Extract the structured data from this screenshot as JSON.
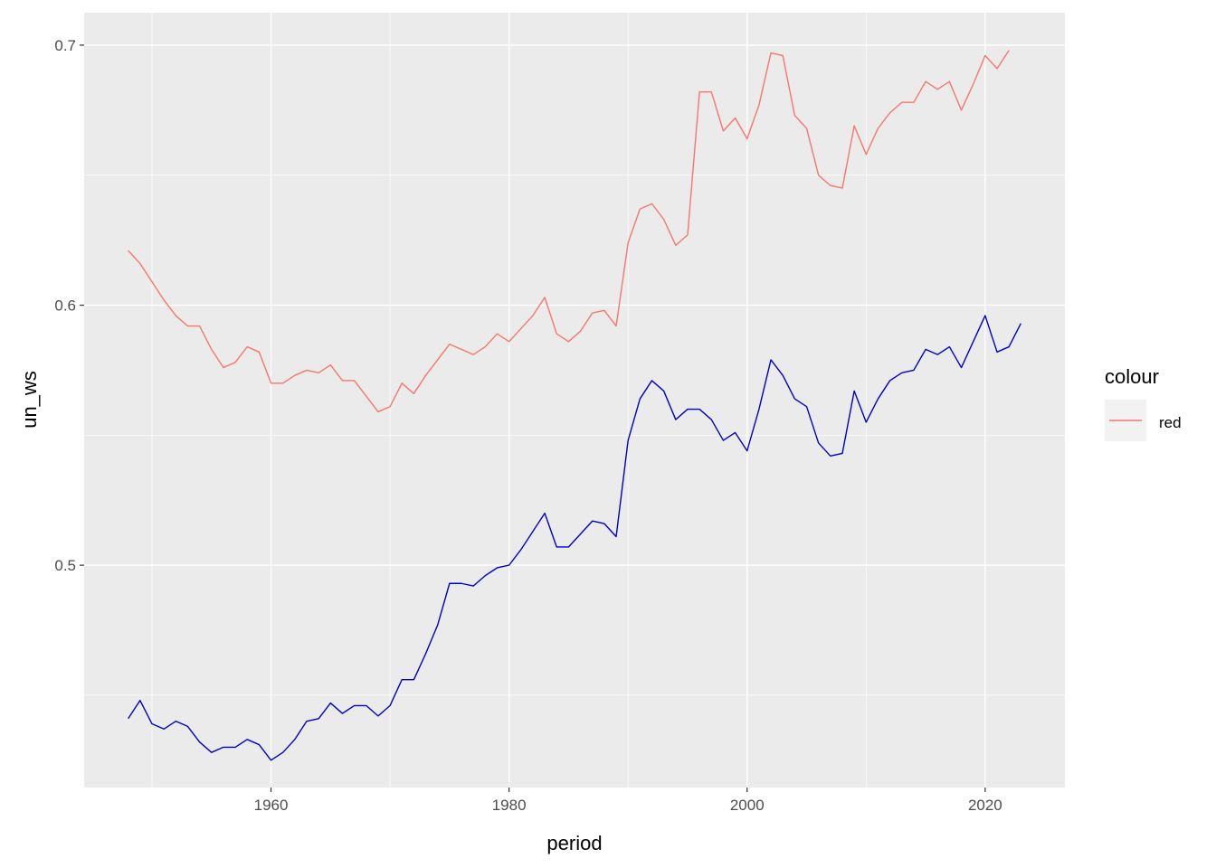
{
  "chart_data": {
    "type": "line",
    "xlabel": "period",
    "ylabel": "un_ws",
    "xlim": [
      1944.3,
      2026.7
    ],
    "ylim": [
      0.4145,
      0.7125
    ],
    "x_ticks": [
      1960,
      1980,
      2000,
      2020
    ],
    "x_tick_labels": [
      "1960",
      "1980",
      "2000",
      "2020"
    ],
    "y_ticks": [
      0.5,
      0.6,
      0.7
    ],
    "y_tick_labels": [
      "0.5",
      "0.6",
      "0.7"
    ],
    "grid": true,
    "background": "#ebebeb",
    "legend": {
      "title": "colour",
      "position": "right",
      "entries": [
        {
          "label": "red",
          "color": "#f8766d"
        }
      ]
    },
    "series": [
      {
        "name": "red",
        "color": "#f8766d",
        "x": [
          1948,
          1949,
          1950,
          1951,
          1952,
          1953,
          1954,
          1955,
          1956,
          1957,
          1958,
          1959,
          1960,
          1961,
          1962,
          1963,
          1964,
          1965,
          1966,
          1967,
          1968,
          1969,
          1970,
          1971,
          1972,
          1973,
          1974,
          1975,
          1976,
          1977,
          1978,
          1979,
          1980,
          1981,
          1982,
          1983,
          1984,
          1985,
          1986,
          1987,
          1988,
          1989,
          1990,
          1991,
          1992,
          1993,
          1994,
          1995,
          1996,
          1997,
          1998,
          1999,
          2000,
          2001,
          2002,
          2003,
          2004,
          2005,
          2006,
          2007,
          2008,
          2009,
          2010,
          2011,
          2012,
          2013,
          2014,
          2015,
          2016,
          2017,
          2018,
          2019,
          2020,
          2021,
          2022
        ],
        "y": [
          0.621,
          0.616,
          0.609,
          0.602,
          0.596,
          0.592,
          0.592,
          0.583,
          0.576,
          0.578,
          0.584,
          0.582,
          0.57,
          0.57,
          0.573,
          0.575,
          0.574,
          0.577,
          0.571,
          0.571,
          0.565,
          0.559,
          0.561,
          0.57,
          0.566,
          0.573,
          0.579,
          0.585,
          0.583,
          0.581,
          0.584,
          0.589,
          0.586,
          0.591,
          0.596,
          0.603,
          0.589,
          0.586,
          0.59,
          0.597,
          0.598,
          0.592,
          0.624,
          0.637,
          0.639,
          0.633,
          0.623,
          0.627,
          0.682,
          0.682,
          0.667,
          0.672,
          0.664,
          0.677,
          0.697,
          0.696,
          0.673,
          0.668,
          0.65,
          0.646,
          0.645,
          0.669,
          0.658,
          0.668,
          0.674,
          0.678,
          0.678,
          0.686,
          0.683,
          0.686,
          0.675,
          0.685,
          0.696,
          0.691,
          0.698
        ]
      },
      {
        "color": "#0000cd",
        "x": [
          1948,
          1949,
          1950,
          1951,
          1952,
          1953,
          1954,
          1955,
          1956,
          1957,
          1958,
          1959,
          1960,
          1961,
          1962,
          1963,
          1964,
          1965,
          1966,
          1967,
          1968,
          1969,
          1970,
          1971,
          1972,
          1973,
          1974,
          1975,
          1976,
          1977,
          1978,
          1979,
          1980,
          1981,
          1982,
          1983,
          1984,
          1985,
          1986,
          1987,
          1988,
          1989,
          1990,
          1991,
          1992,
          1993,
          1994,
          1995,
          1996,
          1997,
          1998,
          1999,
          2000,
          2001,
          2002,
          2003,
          2004,
          2005,
          2006,
          2007,
          2008,
          2009,
          2010,
          2011,
          2012,
          2013,
          2014,
          2015,
          2016,
          2017,
          2018,
          2019,
          2020,
          2021,
          2022,
          2023
        ],
        "y": [
          0.441,
          0.448,
          0.439,
          0.437,
          0.44,
          0.438,
          0.432,
          0.428,
          0.43,
          0.43,
          0.433,
          0.431,
          0.425,
          0.428,
          0.433,
          0.44,
          0.441,
          0.447,
          0.443,
          0.446,
          0.446,
          0.442,
          0.446,
          0.456,
          0.456,
          0.466,
          0.477,
          0.493,
          0.493,
          0.492,
          0.496,
          0.499,
          0.5,
          0.506,
          0.513,
          0.52,
          0.507,
          0.507,
          0.512,
          0.517,
          0.516,
          0.511,
          0.548,
          0.564,
          0.571,
          0.567,
          0.556,
          0.56,
          0.56,
          0.556,
          0.548,
          0.551,
          0.544,
          0.56,
          0.579,
          0.573,
          0.564,
          0.561,
          0.547,
          0.542,
          0.543,
          0.567,
          0.555,
          0.564,
          0.571,
          0.574,
          0.575,
          0.583,
          0.581,
          0.584,
          0.576,
          0.586,
          0.596,
          0.582,
          0.584,
          0.593
        ]
      }
    ]
  }
}
